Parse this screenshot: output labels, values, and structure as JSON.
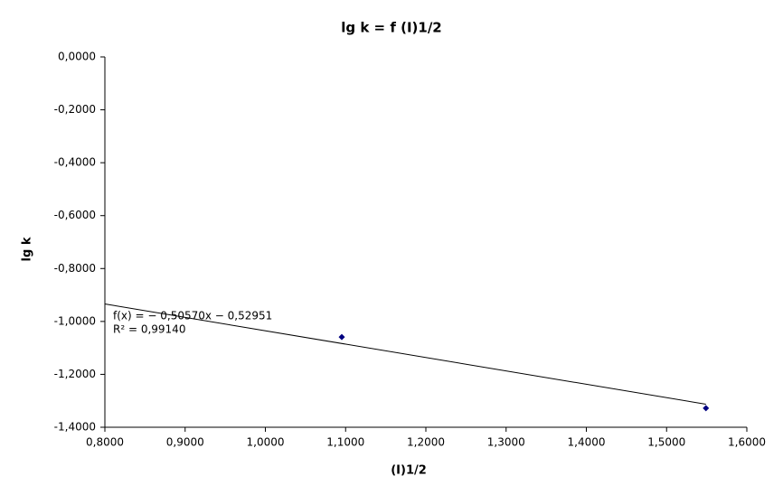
{
  "chart_data": {
    "type": "scatter",
    "title": "lg k = f (I)1/2",
    "x_label": "(I)1/2",
    "y_label": "lg k",
    "series": [
      {
        "name": "lg k",
        "color": "#000080",
        "x": [
          1.0952,
          1.549
        ],
        "values": [
          -1.059,
          -1.328
        ]
      }
    ],
    "xlim": [
      0.8,
      1.6
    ],
    "xticks": [
      {
        "value": 0.8,
        "label": "0,8000"
      },
      {
        "value": 0.9,
        "label": "0,9000"
      },
      {
        "value": 1.0,
        "label": "1,0000"
      },
      {
        "value": 1.1,
        "label": "1,1000"
      },
      {
        "value": 1.2,
        "label": "1,2000"
      },
      {
        "value": 1.3,
        "label": "1,3000"
      },
      {
        "value": 1.4,
        "label": "1,4000"
      },
      {
        "value": 1.5,
        "label": "1,5000"
      },
      {
        "value": 1.6,
        "label": "1,6000"
      }
    ],
    "ylim": [
      -1.4,
      0
    ],
    "yticks": [
      {
        "value": 0,
        "label": "0,0000"
      },
      {
        "value": -0.2,
        "label": "-0,2000"
      },
      {
        "value": -0.4,
        "label": "-0,4000"
      },
      {
        "value": -0.6,
        "label": "-0,6000"
      },
      {
        "value": -0.8,
        "label": "-0,8000"
      },
      {
        "value": -1.0,
        "label": "-1,0000"
      },
      {
        "value": -1.2,
        "label": "-1,2000"
      },
      {
        "value": -1.4,
        "label": "-1,4000"
      }
    ],
    "grid": false,
    "trendline": {
      "color": "#000000",
      "slope": -0.5057,
      "intercept": -0.52951,
      "equation": "f(x) = − 0,50570x − 0,52951",
      "r2": "R² = 0,99140"
    }
  }
}
